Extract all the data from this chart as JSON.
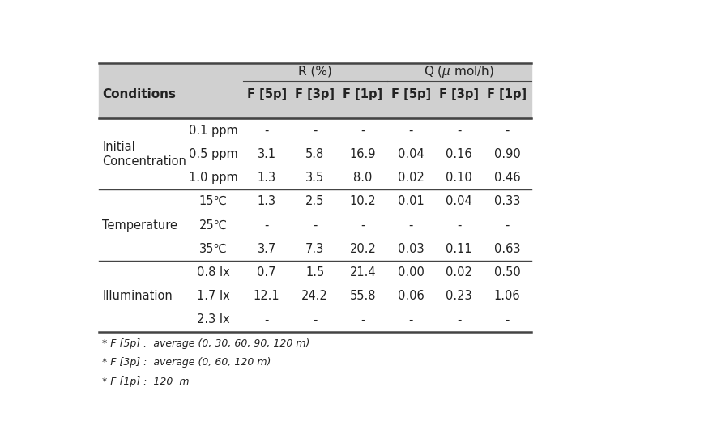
{
  "title_R": "R (%)",
  "title_Q": "Q (μ mol/h)",
  "header_col1": "Conditions",
  "subheaders": [
    "F [5p]",
    "F [3p]",
    "F [1p]",
    "F [5p]",
    "F [3p]",
    "F [1p]"
  ],
  "rows": [
    {
      "condition": "Initial\nConcentration",
      "sub": "0.1 ppm",
      "vals": [
        "-",
        "-",
        "-",
        "-",
        "-",
        "-"
      ]
    },
    {
      "condition": "",
      "sub": "0.5 ppm",
      "vals": [
        "3.1",
        "5.8",
        "16.9",
        "0.04",
        "0.16",
        "0.90"
      ]
    },
    {
      "condition": "",
      "sub": "1.0 ppm",
      "vals": [
        "1.3",
        "3.5",
        "8.0",
        "0.02",
        "0.10",
        "0.46"
      ]
    },
    {
      "condition": "Temperature",
      "sub": "15℃",
      "vals": [
        "1.3",
        "2.5",
        "10.2",
        "0.01",
        "0.04",
        "0.33"
      ]
    },
    {
      "condition": "",
      "sub": "25℃",
      "vals": [
        "-",
        "-",
        "-",
        "-",
        "-",
        "-"
      ]
    },
    {
      "condition": "",
      "sub": "35℃",
      "vals": [
        "3.7",
        "7.3",
        "20.2",
        "0.03",
        "0.11",
        "0.63"
      ]
    },
    {
      "condition": "Illumination",
      "sub": "0.8 lx",
      "vals": [
        "0.7",
        "1.5",
        "21.4",
        "0.00",
        "0.02",
        "0.50"
      ]
    },
    {
      "condition": "",
      "sub": "1.7 lx",
      "vals": [
        "12.1",
        "24.2",
        "55.8",
        "0.06",
        "0.23",
        "1.06"
      ]
    },
    {
      "condition": "",
      "sub": "2.3 lx",
      "vals": [
        "-",
        "-",
        "-",
        "-",
        "-",
        "-"
      ]
    }
  ],
  "footnotes": [
    "* F [5p] :  average (0, 30, 60, 90, 120 m)",
    "* F [3p] :  average (0, 60, 120 m)",
    "* F [1p] :  120  m"
  ],
  "condition_labels": {
    "0": "Initial\nConcentration",
    "3": "Temperature",
    "6": "Illumination"
  },
  "bg_header": "#d0d0d0",
  "bg_white": "#ffffff",
  "text_color": "#222222",
  "border_color": "#444444",
  "fontsize": 10.5,
  "fontsize_header": 11,
  "footnote_fontsize": 9
}
